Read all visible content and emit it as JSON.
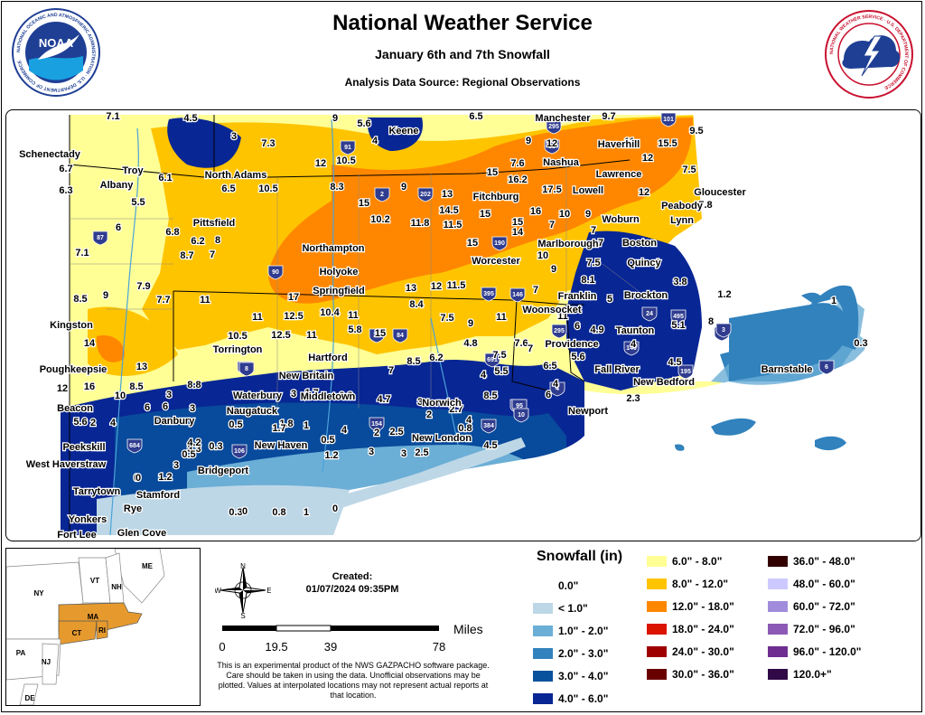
{
  "header": {
    "title": "National Weather Service",
    "subtitle": "January 6th and 7th Snowfall",
    "source": "Analysis Data Source: Regional Observations"
  },
  "logos": {
    "noaa_text": "NOAA",
    "noaa_ring": "NATIONAL OCEANIC AND ATMOSPHERIC ADMINISTRATION · U.S. DEPARTMENT OF COMMERCE",
    "nws_ring": "NATIONAL WEATHER SERVICE · U.S. DEPARTMENT OF COMMERCE"
  },
  "map": {
    "places": [
      {
        "name": "Schenectady"
      },
      {
        "name": "Troy"
      },
      {
        "name": "Albany"
      },
      {
        "name": "North Adams"
      },
      {
        "name": "Pittsfield"
      },
      {
        "name": "Keene"
      },
      {
        "name": "Manchester"
      },
      {
        "name": "Nashua"
      },
      {
        "name": "Haverhill"
      },
      {
        "name": "Lawrence"
      },
      {
        "name": "Lowell"
      },
      {
        "name": "Gloucester"
      },
      {
        "name": "Peabody"
      },
      {
        "name": "Lynn"
      },
      {
        "name": "Woburn"
      },
      {
        "name": "Fitchburg"
      },
      {
        "name": "Boston"
      },
      {
        "name": "Quincy"
      },
      {
        "name": "Marlborough"
      },
      {
        "name": "Worcester"
      },
      {
        "name": "Northampton"
      },
      {
        "name": "Holyoke"
      },
      {
        "name": "Springfield"
      },
      {
        "name": "Franklin"
      },
      {
        "name": "Brockton"
      },
      {
        "name": "Woonsocket"
      },
      {
        "name": "Kingston"
      },
      {
        "name": "Torrington"
      },
      {
        "name": "Providence"
      },
      {
        "name": "Taunton"
      },
      {
        "name": "Hartford"
      },
      {
        "name": "Poughkeepsie"
      },
      {
        "name": "New Britain"
      },
      {
        "name": "Fall River"
      },
      {
        "name": "New Bedford"
      },
      {
        "name": "Barnstable"
      },
      {
        "name": "Waterbury"
      },
      {
        "name": "Middletown"
      },
      {
        "name": "Naugatuck"
      },
      {
        "name": "Norwich"
      },
      {
        "name": "Beacon"
      },
      {
        "name": "Danbury"
      },
      {
        "name": "Newport"
      },
      {
        "name": "New London"
      },
      {
        "name": "New Haven"
      },
      {
        "name": "Peekskill"
      },
      {
        "name": "West Haverstraw"
      },
      {
        "name": "Bridgeport"
      },
      {
        "name": "Tarrytown"
      },
      {
        "name": "Stamford"
      },
      {
        "name": "Rye"
      },
      {
        "name": "Yonkers"
      },
      {
        "name": "Fort Lee"
      },
      {
        "name": "Glen Cove"
      }
    ],
    "values": [
      {
        "v": "7.1"
      },
      {
        "v": "4.5"
      },
      {
        "v": "9"
      },
      {
        "v": "5.6"
      },
      {
        "v": "6.5"
      },
      {
        "v": "9.7"
      },
      {
        "v": "3"
      },
      {
        "v": "4"
      },
      {
        "v": "7.3"
      },
      {
        "v": "12"
      },
      {
        "v": "9"
      },
      {
        "v": "11"
      },
      {
        "v": "15.5"
      },
      {
        "v": "9.5"
      },
      {
        "v": "6.7"
      },
      {
        "v": "12"
      },
      {
        "v": "10.5"
      },
      {
        "v": "7.6"
      },
      {
        "v": "12"
      },
      {
        "v": "7.5"
      },
      {
        "v": "6.3"
      },
      {
        "v": "6.1"
      },
      {
        "v": "6.5"
      },
      {
        "v": "10.5"
      },
      {
        "v": "8.3"
      },
      {
        "v": "9"
      },
      {
        "v": "13"
      },
      {
        "v": "15"
      },
      {
        "v": "16.2"
      },
      {
        "v": "17.5"
      },
      {
        "v": "12"
      },
      {
        "v": "7.8"
      },
      {
        "v": "5.5"
      },
      {
        "v": "15"
      },
      {
        "v": "10.2"
      },
      {
        "v": "11.8"
      },
      {
        "v": "14.5"
      },
      {
        "v": "11.5"
      },
      {
        "v": "15"
      },
      {
        "v": "16"
      },
      {
        "v": "15"
      },
      {
        "v": "10"
      },
      {
        "v": "9"
      },
      {
        "v": "7"
      },
      {
        "v": "6"
      },
      {
        "v": "6.8"
      },
      {
        "v": "6.2"
      },
      {
        "v": "8"
      },
      {
        "v": "15"
      },
      {
        "v": "14"
      },
      {
        "v": "7"
      },
      {
        "v": "7"
      },
      {
        "v": "7.1"
      },
      {
        "v": "8.7"
      },
      {
        "v": "7"
      },
      {
        "v": "10"
      },
      {
        "v": "4"
      },
      {
        "v": "7.5"
      },
      {
        "v": "3.8"
      },
      {
        "v": "9"
      },
      {
        "v": "8.5"
      },
      {
        "v": "9"
      },
      {
        "v": "7.9"
      },
      {
        "v": "7.7"
      },
      {
        "v": "11"
      },
      {
        "v": "17"
      },
      {
        "v": "13"
      },
      {
        "v": "12"
      },
      {
        "v": "11.5"
      },
      {
        "v": "7"
      },
      {
        "v": "8.1"
      },
      {
        "v": "5"
      },
      {
        "v": "1.2"
      },
      {
        "v": "1"
      },
      {
        "v": "11"
      },
      {
        "v": "12.5"
      },
      {
        "v": "10.4"
      },
      {
        "v": "11"
      },
      {
        "v": "8.4"
      },
      {
        "v": "7.5"
      },
      {
        "v": "9"
      },
      {
        "v": "11"
      },
      {
        "v": "11"
      },
      {
        "v": "6"
      },
      {
        "v": "4.9"
      },
      {
        "v": "5.1"
      },
      {
        "v": "8"
      },
      {
        "v": "14"
      },
      {
        "v": "10.5"
      },
      {
        "v": "12.5"
      },
      {
        "v": "11"
      },
      {
        "v": "5.8"
      },
      {
        "v": "15"
      },
      {
        "v": "7.6"
      },
      {
        "v": "7"
      },
      {
        "v": "4"
      },
      {
        "v": "4.5"
      },
      {
        "v": "13"
      },
      {
        "v": "7.5"
      },
      {
        "v": "6.5"
      },
      {
        "v": "5.6"
      },
      {
        "v": "4.8"
      },
      {
        "v": "5.5"
      },
      {
        "v": "8.5"
      },
      {
        "v": "6.2"
      },
      {
        "v": "7"
      },
      {
        "v": "3"
      },
      {
        "v": "2.7"
      },
      {
        "v": "4"
      },
      {
        "v": "6"
      },
      {
        "v": "4"
      },
      {
        "v": "2.3"
      },
      {
        "v": "0.3"
      },
      {
        "v": "12"
      },
      {
        "v": "16"
      },
      {
        "v": "8.5"
      },
      {
        "v": "8.8"
      },
      {
        "v": "10"
      },
      {
        "v": "3"
      },
      {
        "v": "3"
      },
      {
        "v": "1.7"
      },
      {
        "v": "0.8"
      },
      {
        "v": "4.7"
      },
      {
        "v": "8.5"
      },
      {
        "v": "6"
      },
      {
        "v": "6"
      },
      {
        "v": "5.6"
      },
      {
        "v": "2"
      },
      {
        "v": "4"
      },
      {
        "v": "3"
      },
      {
        "v": "0.5"
      },
      {
        "v": "1.8"
      },
      {
        "v": "2"
      },
      {
        "v": "4"
      },
      {
        "v": "3.3"
      },
      {
        "v": "4.2"
      },
      {
        "v": "1.7"
      },
      {
        "v": "1"
      },
      {
        "v": "4"
      },
      {
        "v": "2"
      },
      {
        "v": "2.5"
      },
      {
        "v": "0.8"
      },
      {
        "v": "0.3"
      },
      {
        "v": "0.5"
      },
      {
        "v": "0.5"
      },
      {
        "v": "3"
      },
      {
        "v": "3"
      },
      {
        "v": "2.5"
      },
      {
        "v": "4.5"
      },
      {
        "v": "3"
      },
      {
        "v": "1.2"
      },
      {
        "v": "0"
      },
      {
        "v": "1.2"
      },
      {
        "v": "0"
      },
      {
        "v": "0.3"
      },
      {
        "v": "0"
      },
      {
        "v": "0.8"
      },
      {
        "v": "1"
      },
      {
        "v": "0"
      }
    ],
    "highway_shields": [
      "91",
      "93",
      "101",
      "295",
      "2",
      "202",
      "190",
      "87",
      "90",
      "395",
      "146",
      "495",
      "24",
      "140",
      "95",
      "195",
      "6",
      "3",
      "384",
      "154",
      "84",
      "8",
      "691",
      "684",
      "106",
      "95",
      "295",
      "3",
      "4",
      "10",
      "30",
      "8"
    ]
  },
  "inset": {
    "states": [
      "ME",
      "VT",
      "NH",
      "NY",
      "MA",
      "CT",
      "RI",
      "PA",
      "NJ",
      "DE"
    ]
  },
  "compass": {
    "n": "N",
    "s": "S",
    "e": "E",
    "w": "W"
  },
  "created": {
    "label": "Created:",
    "datetime": "01/07/2024 09:35PM"
  },
  "scale": {
    "unit": "Miles",
    "ticks": [
      "0",
      "19.5",
      "39",
      "78"
    ]
  },
  "disclaimer": "This is an experimental product of the NWS GAZPACHO software package. Care should be taken in using the data. Unofficial observations may be plotted. Values at interpolated locations may not represent actual reports at that location.",
  "legend": {
    "title": "Snowfall (in)",
    "items": [
      {
        "label": "0.0\"",
        "color": "#ffffff"
      },
      {
        "label": "< 1.0\"",
        "color": "#bdd7e7"
      },
      {
        "label": "1.0\" - 2.0\"",
        "color": "#6baed6"
      },
      {
        "label": "2.0\" - 3.0\"",
        "color": "#3182bd"
      },
      {
        "label": "3.0\" - 4.0\"",
        "color": "#08519c"
      },
      {
        "label": "4.0\" - 6.0\"",
        "color": "#082694"
      },
      {
        "label": "6.0\" - 8.0\"",
        "color": "#ffff96"
      },
      {
        "label": "8.0\" - 12.0\"",
        "color": "#ffc400"
      },
      {
        "label": "12.0\" - 18.0\"",
        "color": "#ff8700"
      },
      {
        "label": "18.0\" - 24.0\"",
        "color": "#db1400"
      },
      {
        "label": "24.0\" - 30.0\"",
        "color": "#9e0000"
      },
      {
        "label": "30.0\" - 36.0\"",
        "color": "#690000"
      },
      {
        "label": "36.0\" - 48.0\"",
        "color": "#330000"
      },
      {
        "label": "48.0\" - 60.0\"",
        "color": "#cdc9ff"
      },
      {
        "label": "60.0\" - 72.0\"",
        "color": "#a08cdb"
      },
      {
        "label": "72.0\" - 96.0\"",
        "color": "#8c59b4"
      },
      {
        "label": "96.0\" - 120.0\"",
        "color": "#6e2d91"
      },
      {
        "label": "120.0+\"",
        "color": "#300a46"
      }
    ]
  }
}
